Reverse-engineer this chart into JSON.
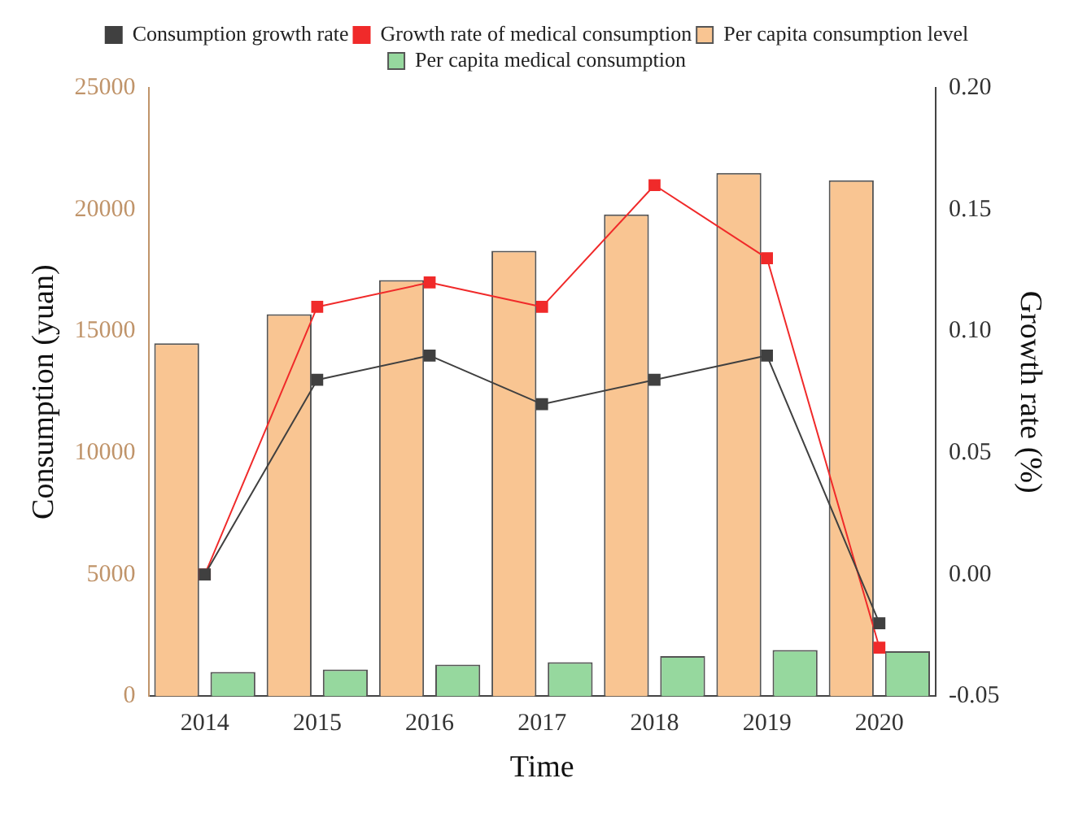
{
  "chart_data": {
    "type": "bar",
    "xlabel": "Time",
    "ylabel": "Consumption (yuan)",
    "y2label": "Growth rate (%)",
    "categories": [
      "2014",
      "2015",
      "2016",
      "2017",
      "2018",
      "2019",
      "2020"
    ],
    "series": [
      {
        "name": "Per capita consumption level",
        "color": "#f9c592",
        "values": [
          14500,
          15700,
          17100,
          18300,
          19800,
          21500,
          21200
        ]
      },
      {
        "name": "Per capita medical consumption",
        "color": "#96d89e",
        "values": [
          1000,
          1100,
          1300,
          1400,
          1650,
          1900,
          1850
        ]
      },
      {
        "name": "Consumption growth rate",
        "type": "line",
        "axis": "y2",
        "color": "#404040",
        "values": [
          0.0,
          0.08,
          0.09,
          0.07,
          0.08,
          0.09,
          -0.02
        ]
      },
      {
        "name": "Growth rate of medical consumption",
        "type": "line",
        "axis": "y2",
        "color": "#f02a2a",
        "values": [
          0.0,
          0.11,
          0.12,
          0.11,
          0.16,
          0.13,
          -0.03
        ]
      }
    ],
    "ylim": [
      0,
      25000
    ],
    "yticks": [
      0,
      5000,
      10000,
      15000,
      20000,
      25000
    ],
    "y2lim": [
      -0.05,
      0.2
    ],
    "y2ticks": [
      {
        "value": -0.05,
        "label": "-0.05"
      },
      {
        "value": 0,
        "label": "0.00"
      },
      {
        "value": 0.05,
        "label": "0.05"
      },
      {
        "value": 0.1,
        "label": "0.10"
      },
      {
        "value": 0.15,
        "label": "0.15"
      },
      {
        "value": 0.2,
        "label": "0.20"
      }
    ],
    "grid": false,
    "legend": "top",
    "marker": "square",
    "line_style": "solid"
  }
}
